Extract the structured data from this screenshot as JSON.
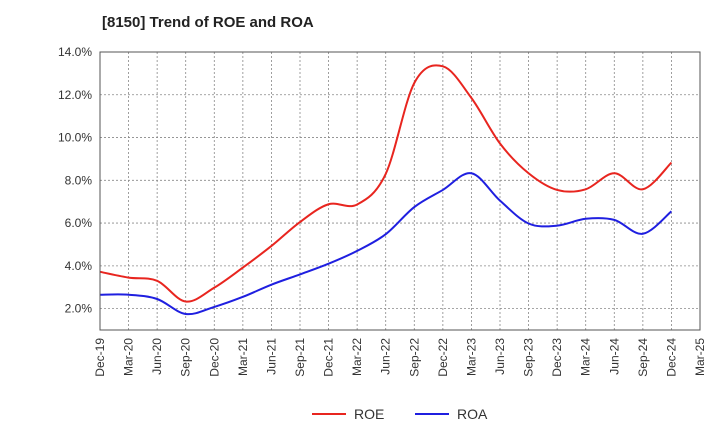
{
  "chart_data": {
    "type": "line",
    "title": "[8150]  Trend of ROE and ROA",
    "xlabel": "",
    "ylabel": "",
    "categories": [
      "Dec-19",
      "Mar-20",
      "Jun-20",
      "Sep-20",
      "Dec-20",
      "Mar-21",
      "Jun-21",
      "Sep-21",
      "Dec-21",
      "Mar-22",
      "Jun-22",
      "Sep-22",
      "Dec-22",
      "Mar-23",
      "Jun-23",
      "Sep-23",
      "Dec-23",
      "Mar-24",
      "Jun-24",
      "Sep-24",
      "Dec-24",
      "Mar-25"
    ],
    "ylim": [
      1.0,
      14.0
    ],
    "yticks": [
      2.0,
      4.0,
      6.0,
      8.0,
      10.0,
      12.0,
      14.0
    ],
    "ytick_labels": [
      "2.0%",
      "4.0%",
      "6.0%",
      "8.0%",
      "10.0%",
      "12.0%",
      "14.0%"
    ],
    "grid": true,
    "legend_position": "bottom",
    "series": [
      {
        "name": "ROE",
        "color": "#e8251f",
        "values": [
          3.72,
          3.45,
          3.3,
          2.33,
          2.98,
          3.92,
          4.93,
          6.05,
          6.88,
          6.87,
          8.3,
          12.55,
          13.33,
          11.85,
          9.72,
          8.33,
          7.55,
          7.58,
          8.33,
          7.58,
          8.83,
          null
        ]
      },
      {
        "name": "ROA",
        "color": "#1f1fe0",
        "values": [
          2.65,
          2.65,
          2.45,
          1.75,
          2.08,
          2.55,
          3.12,
          3.6,
          4.1,
          4.7,
          5.48,
          6.75,
          7.55,
          8.33,
          7.05,
          5.98,
          5.88,
          6.2,
          6.15,
          5.5,
          6.55,
          null
        ]
      }
    ]
  }
}
